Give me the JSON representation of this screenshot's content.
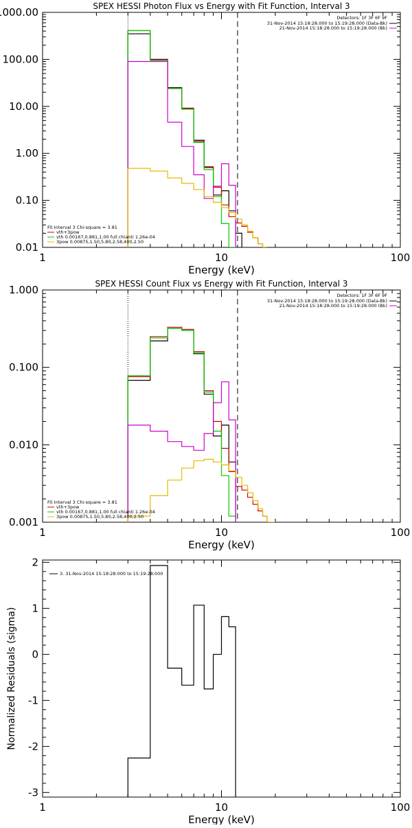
{
  "chart_data": [
    {
      "type": "line",
      "title": "SPEX HESSI Photon Flux vs Energy with Fit Function, Interval 3",
      "xlabel": "Energy (keV)",
      "ylabel": "",
      "xscale": "log",
      "yscale": "log",
      "xlim": [
        1,
        100
      ],
      "ylim": [
        0.01,
        1000
      ],
      "x_ticks": [
        1,
        10,
        100
      ],
      "x_tick_labels": [
        "1",
        "10",
        "100"
      ],
      "y_ticks": [
        0.01,
        0.1,
        1,
        10,
        100,
        1000
      ],
      "y_tick_labels": [
        "0.01",
        "0.10",
        "1.00",
        "10.00",
        "100.00",
        "1000.00"
      ],
      "vlines": [
        {
          "x": 3,
          "style": "dotted"
        },
        {
          "x": 12.3,
          "style": "dashed"
        }
      ],
      "legend_right": {
        "detectors": "Detectors: 1F 3F 6F 9F",
        "entries": [
          {
            "label": "31-Nov-2014 15:18:28.000 to 15:19:28.000 (Data-Bk)",
            "color": "#000000"
          },
          {
            "label": "21-Nov-2014 15:18:28.000 to 15:19:28.000 (Bk)",
            "color": "#cc00cc"
          }
        ]
      },
      "legend_left": {
        "header": "Fit Interval 3   Chi-square = 3.81",
        "entries": [
          {
            "label": "vth+3pow",
            "color": "#cc0000"
          },
          {
            "label": "vth 0.00167,0.881,1.00  full chianti 1.26e-04",
            "color": "#00cc00"
          },
          {
            "label": "3pow 0.00875,1.50,5.80,2.58,400,2.50",
            "color": "#e6b800"
          }
        ]
      },
      "bin_edges": [
        3,
        4,
        5,
        6,
        7,
        8,
        9,
        10,
        11,
        12,
        13,
        14,
        15,
        16,
        17,
        18
      ],
      "series": [
        {
          "name": "Data-Bk",
          "color": "#000000",
          "values": [
            350,
            100,
            25,
            9,
            1.9,
            0.5,
            0.13,
            0.16,
            0.06,
            0.02
          ]
        },
        {
          "name": "vth+3pow",
          "color": "#cc0000",
          "values": [
            410,
            98,
            24,
            9.2,
            1.8,
            0.52,
            0.19,
            0.08,
            0.045,
            0.033,
            0.028,
            0.021,
            0.016,
            0.012,
            0.009
          ]
        },
        {
          "name": "vth",
          "color": "#00cc00",
          "values": [
            410,
            95,
            24,
            8.7,
            1.7,
            0.45,
            0.12,
            0.032,
            0.009
          ]
        },
        {
          "name": "Bk",
          "color": "#cc00cc",
          "values": [
            90,
            90,
            4.6,
            1.4,
            0.35,
            0.11,
            0.2,
            0.6,
            0.21
          ]
        },
        {
          "name": "3pow",
          "color": "#e6b800",
          "values": [
            0.48,
            0.42,
            0.3,
            0.23,
            0.17,
            0.12,
            0.091,
            0.07,
            0.055,
            0.04,
            0.03,
            0.022,
            0.016,
            0.012,
            0.009
          ]
        }
      ]
    },
    {
      "type": "line",
      "title": "SPEX HESSI Count Flux vs Energy with Fit Function, Interval 3",
      "xlabel": "Energy (keV)",
      "ylabel": "",
      "xscale": "log",
      "yscale": "log",
      "xlim": [
        1,
        100
      ],
      "ylim": [
        0.001,
        1
      ],
      "x_ticks": [
        1,
        10,
        100
      ],
      "x_tick_labels": [
        "1",
        "10",
        "100"
      ],
      "y_ticks": [
        0.001,
        0.01,
        0.1,
        1
      ],
      "y_tick_labels": [
        "0.001",
        "0.010",
        "0.100",
        "1.000"
      ],
      "vlines": [
        {
          "x": 3,
          "style": "dotted"
        },
        {
          "x": 12.3,
          "style": "dashed"
        }
      ],
      "legend_right": {
        "detectors": "Detectors: 1F 3F 6F 9F",
        "entries": [
          {
            "label": "31-Nov-2014 15:18:28.000 to 15:19:28.000 (Data-Bk)",
            "color": "#000000"
          },
          {
            "label": "21-Nov-2014 15:18:28.000 to 15:19:28.000 (Bk)",
            "color": "#cc00cc"
          }
        ]
      },
      "legend_left": {
        "header": "Fit Interval 3   Chi-square = 3.81",
        "entries": [
          {
            "label": "vth+3pow",
            "color": "#cc0000"
          },
          {
            "label": "vth 0.00167,0.881,1.00  full chianti 1.26e-04",
            "color": "#00cc00"
          },
          {
            "label": "3pow 0.00875,1.50,5.80,2.58,400,2.50",
            "color": "#e6b800"
          }
        ]
      },
      "bin_edges": [
        3,
        4,
        5,
        6,
        7,
        8,
        9,
        10,
        11,
        12,
        13,
        14,
        15,
        16,
        17,
        18,
        19,
        20
      ],
      "series": [
        {
          "name": "Data-Bk",
          "color": "#000000",
          "values": [
            0.068,
            0.22,
            0.32,
            0.3,
            0.15,
            0.045,
            0.013,
            0.018,
            0.006
          ]
        },
        {
          "name": "vth+3pow",
          "color": "#cc0000",
          "values": [
            0.076,
            0.25,
            0.33,
            0.31,
            0.16,
            0.05,
            0.02,
            0.009,
            0.0045,
            0.0029,
            0.0026,
            0.0021,
            0.0017,
            0.0014,
            0.0012,
            0.001
          ]
        },
        {
          "name": "vth",
          "color": "#00cc00",
          "values": [
            0.078,
            0.24,
            0.32,
            0.3,
            0.155,
            0.048,
            0.015,
            0.004,
            0.0012
          ]
        },
        {
          "name": "Bk",
          "color": "#cc00cc",
          "values": [
            0.018,
            0.015,
            0.011,
            0.0095,
            0.0085,
            0.014,
            0.035,
            0.065,
            0.021
          ]
        },
        {
          "name": "3pow",
          "color": "#e6b800",
          "values": [
            0.0012,
            0.0022,
            0.0035,
            0.005,
            0.0062,
            0.0065,
            0.006,
            0.0055,
            0.0046,
            0.0038,
            0.003,
            0.0024,
            0.0019,
            0.0015,
            0.0012,
            0.001,
            0.0009
          ]
        }
      ]
    },
    {
      "type": "line",
      "title": "",
      "xlabel": "Energy (keV)",
      "ylabel": "Normalized Residuals (sigma)",
      "xscale": "log",
      "yscale": "linear",
      "xlim": [
        1,
        100
      ],
      "ylim": [
        -3.1,
        2.05
      ],
      "x_ticks": [
        1,
        10,
        100
      ],
      "x_tick_labels": [
        "1",
        "10",
        "100"
      ],
      "y_ticks": [
        -3,
        -2,
        -1,
        0,
        1,
        2
      ],
      "y_tick_labels": [
        "-3",
        "-2",
        "-1",
        "0",
        "1",
        "2"
      ],
      "legend": {
        "entries": [
          {
            "label": "3. 31-Nov-2014 15:18:28.000 to 15:19:28.000",
            "color": "#000000"
          }
        ]
      },
      "bin_edges": [
        3,
        4,
        5,
        6,
        7,
        8,
        9,
        10,
        11,
        12
      ],
      "series": [
        {
          "name": "3. 31-Nov-2014 15:18:28.000 to 15:19:28.000",
          "color": "#000000",
          "values": [
            -2.25,
            1.93,
            -0.3,
            -0.67,
            1.07,
            -0.75,
            0.0,
            0.82,
            0.6
          ]
        }
      ]
    }
  ]
}
